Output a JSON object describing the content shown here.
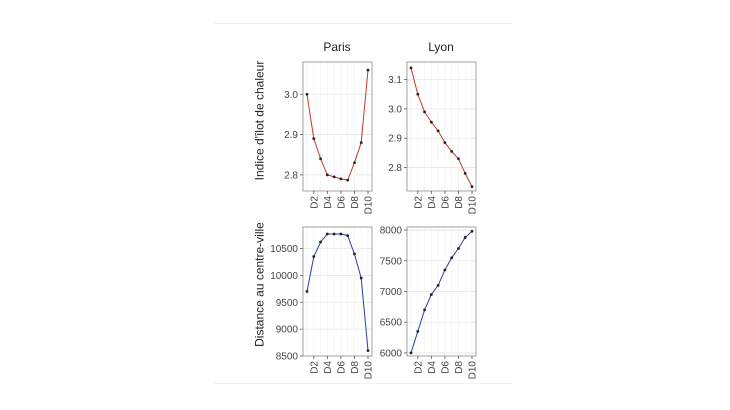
{
  "chart_data": [
    {
      "type": "line",
      "row": "Indice d'îlot de chaleur",
      "column": "Paris",
      "categories": [
        "D1",
        "D2",
        "D3",
        "D4",
        "D5",
        "D6",
        "D7",
        "D8",
        "D9",
        "D10"
      ],
      "x_tick_labels": [
        "D2",
        "D4",
        "D6",
        "D8",
        "D10"
      ],
      "values": [
        3.0,
        2.89,
        2.84,
        2.8,
        2.795,
        2.79,
        2.787,
        2.83,
        2.88,
        3.06
      ],
      "ylim": [
        2.76,
        3.08
      ],
      "y_ticks": [
        "2.8",
        "2.9",
        "3.0"
      ],
      "y_tick_values": [
        2.8,
        2.9,
        3.0
      ],
      "color": "#c0392b",
      "grid": true
    },
    {
      "type": "line",
      "row": "Indice d'îlot de chaleur",
      "column": "Lyon",
      "categories": [
        "D1",
        "D2",
        "D3",
        "D4",
        "D5",
        "D6",
        "D7",
        "D8",
        "D9",
        "D10"
      ],
      "x_tick_labels": [
        "D2",
        "D4",
        "D6",
        "D8",
        "D10"
      ],
      "values": [
        3.14,
        3.05,
        2.99,
        2.955,
        2.925,
        2.885,
        2.855,
        2.83,
        2.78,
        2.735
      ],
      "ylim": [
        2.72,
        3.16
      ],
      "y_ticks": [
        "2.8",
        "2.9",
        "3.0",
        "3.1"
      ],
      "y_tick_values": [
        2.8,
        2.9,
        3.0,
        3.1
      ],
      "color": "#c0392b",
      "grid": true
    },
    {
      "type": "line",
      "row": "Distance au centre-ville",
      "column": "Paris",
      "categories": [
        "D1",
        "D2",
        "D3",
        "D4",
        "D5",
        "D6",
        "D7",
        "D8",
        "D9",
        "D10"
      ],
      "x_tick_labels": [
        "D2",
        "D4",
        "D6",
        "D8",
        "D10"
      ],
      "values": [
        9700,
        10350,
        10620,
        10770,
        10770,
        10770,
        10740,
        10400,
        9950,
        8600
      ],
      "ylim": [
        8500,
        10900
      ],
      "y_ticks": [
        "8500",
        "9000",
        "9500",
        "10000",
        "10500"
      ],
      "y_tick_values": [
        8500,
        9000,
        9500,
        10000,
        10500
      ],
      "color": "#2c3e9e",
      "grid": true
    },
    {
      "type": "line",
      "row": "Distance au centre-ville",
      "column": "Lyon",
      "categories": [
        "D1",
        "D2",
        "D3",
        "D4",
        "D5",
        "D6",
        "D7",
        "D8",
        "D9",
        "D10"
      ],
      "x_tick_labels": [
        "D2",
        "D4",
        "D6",
        "D8",
        "D10"
      ],
      "values": [
        6000,
        6350,
        6700,
        6950,
        7100,
        7350,
        7550,
        7700,
        7880,
        7980
      ],
      "ylim": [
        5950,
        8050
      ],
      "y_ticks": [
        "6000",
        "6500",
        "7000",
        "7500",
        "8000"
      ],
      "y_tick_values": [
        6000,
        6500,
        7000,
        7500,
        8000
      ],
      "color": "#2c3e9e",
      "grid": true
    }
  ],
  "labels": {
    "col_paris": "Paris",
    "col_lyon": "Lyon",
    "row_heat": "Indice d'îlot de chaleur",
    "row_distance": "Distance au centre-ville"
  }
}
